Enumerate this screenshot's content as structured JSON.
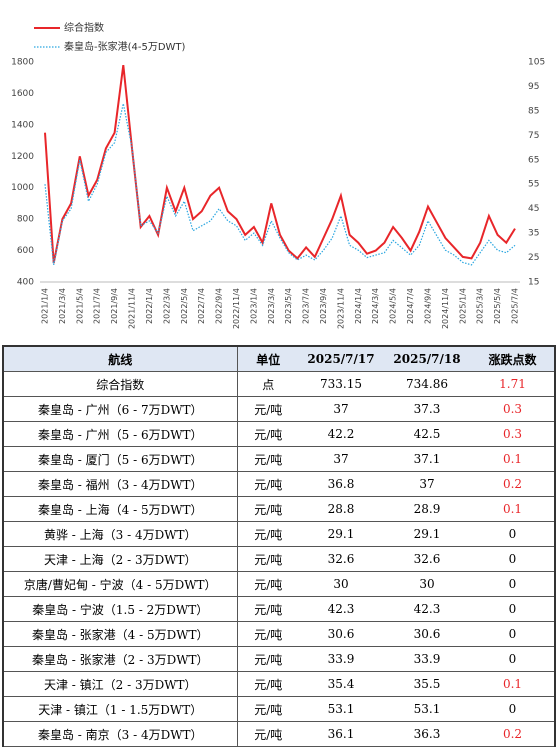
{
  "chart_data": {
    "type": "line",
    "categories": [
      "2021/1/4",
      null,
      "2021/3/4",
      null,
      "2021/5/4",
      null,
      "2021/7/4",
      null,
      "2021/9/4",
      null,
      "2021/11/4",
      null,
      "2022/1/4",
      null,
      "2022/3/4",
      null,
      "2022/5/4",
      null,
      "2022/7/4",
      null,
      "2022/9/4",
      null,
      "2022/11/4",
      null,
      "2023/1/4",
      null,
      "2023/3/4",
      null,
      "2023/5/4",
      null,
      "2023/7/4",
      null,
      "2023/9/4",
      null,
      "2023/11/4",
      null,
      "2024/1/4",
      null,
      "2024/3/4",
      null,
      "2024/5/4",
      null,
      "2024/7/4",
      null,
      "2024/9/4",
      null,
      "2024/11/4",
      null,
      "2025/1/4",
      null,
      "2025/3/4",
      null,
      "2025/5/4",
      null,
      "2025/7/4"
    ],
    "series": [
      {
        "name": "综合指数",
        "color": "#e8262a",
        "values": [
          1350,
          520,
          800,
          900,
          1200,
          950,
          1050,
          1250,
          1350,
          1780,
          1250,
          750,
          820,
          700,
          1000,
          850,
          1000,
          800,
          850,
          950,
          1000,
          850,
          800,
          700,
          750,
          650,
          900,
          700,
          600,
          550,
          620,
          560,
          680,
          800,
          950,
          700,
          650,
          580,
          600,
          650,
          750,
          680,
          600,
          720,
          880,
          780,
          680,
          620,
          560,
          550,
          650,
          820,
          700,
          650,
          740
        ]
      },
      {
        "name": "秦皇岛-张家港(4-5万DWT)",
        "color": "#2aa6e0",
        "axis": "y2",
        "dash": true,
        "values": [
          55,
          22,
          40,
          45,
          65,
          48,
          55,
          68,
          72,
          88,
          70,
          38,
          40,
          35,
          50,
          42,
          48,
          36,
          38,
          40,
          45,
          40,
          38,
          32,
          35,
          30,
          40,
          33,
          27,
          24,
          26,
          24,
          28,
          33,
          42,
          30,
          28,
          25,
          26,
          27,
          32,
          29,
          26,
          30,
          40,
          34,
          28,
          26,
          23,
          22,
          27,
          32,
          28,
          27,
          30
        ]
      }
    ],
    "ylim": [
      400,
      1800
    ],
    "yticks": [
      400,
      600,
      800,
      1000,
      1200,
      1400,
      1600,
      1800
    ],
    "y2lim": [
      15,
      105
    ],
    "y2ticks": [
      15,
      25,
      35,
      45,
      55,
      65,
      75,
      85,
      95,
      105
    ]
  },
  "table": {
    "headers": [
      "航线",
      "单位",
      "2025/7/17",
      "2025/7/18",
      "涨跌点数"
    ],
    "rows": [
      [
        "综合指数",
        "点",
        733.15,
        734.86,
        1.71
      ],
      [
        "秦皇岛 - 广州（6 - 7万DWT）",
        "元/吨",
        37,
        37.3,
        0.3
      ],
      [
        "秦皇岛 - 广州（5 - 6万DWT）",
        "元/吨",
        42.2,
        42.5,
        0.3
      ],
      [
        "秦皇岛 - 厦门（5 - 6万DWT）",
        "元/吨",
        37,
        37.1,
        0.1
      ],
      [
        "秦皇岛 - 福州（3 - 4万DWT）",
        "元/吨",
        36.8,
        37,
        0.2
      ],
      [
        "秦皇岛 - 上海（4 - 5万DWT）",
        "元/吨",
        28.8,
        28.9,
        0.1
      ],
      [
        "黄骅 - 上海（3 - 4万DWT）",
        "元/吨",
        29.1,
        29.1,
        0
      ],
      [
        "天津 - 上海（2 - 3万DWT）",
        "元/吨",
        32.6,
        32.6,
        0
      ],
      [
        "京唐/曹妃甸 - 宁波（4 - 5万DWT）",
        "元/吨",
        30,
        30,
        0
      ],
      [
        "秦皇岛 - 宁波（1.5 - 2万DWT）",
        "元/吨",
        42.3,
        42.3,
        0
      ],
      [
        "秦皇岛 - 张家港（4 - 5万DWT）",
        "元/吨",
        30.6,
        30.6,
        0
      ],
      [
        "秦皇岛 - 张家港（2 - 3万DWT）",
        "元/吨",
        33.9,
        33.9,
        0
      ],
      [
        "天津 - 镇江（2 - 3万DWT）",
        "元/吨",
        35.4,
        35.5,
        0.1
      ],
      [
        "天津 - 镇江（1 - 1.5万DWT）",
        "元/吨",
        53.1,
        53.1,
        0
      ],
      [
        "秦皇岛 - 南京（3 - 4万DWT）",
        "元/吨",
        36.1,
        36.3,
        0.2
      ]
    ],
    "up_color": "#e8262a"
  }
}
